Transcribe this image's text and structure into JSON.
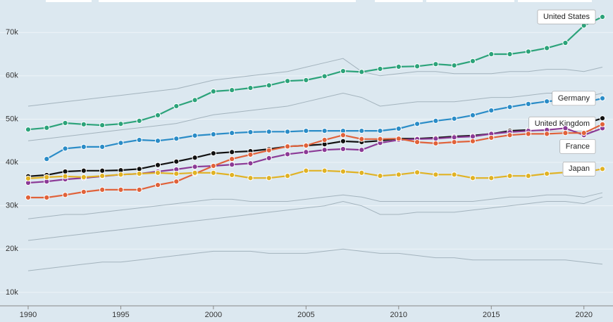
{
  "chart_data": {
    "type": "line",
    "x": [
      1990,
      1991,
      1992,
      1993,
      1994,
      1995,
      1996,
      1997,
      1998,
      1999,
      2000,
      2001,
      2002,
      2003,
      2004,
      2005,
      2006,
      2007,
      2008,
      2009,
      2010,
      2011,
      2012,
      2013,
      2014,
      2015,
      2016,
      2017,
      2018,
      2019,
      2020,
      2021
    ],
    "xlim": [
      1988.48,
      2021.57
    ],
    "xticks": [
      1990,
      1995,
      2000,
      2005,
      2010,
      2015,
      2020
    ],
    "ylim": [
      6900,
      77500
    ],
    "yticks": [
      {
        "value": 10000,
        "label": "10k"
      },
      {
        "value": 20000,
        "label": "20k"
      },
      {
        "value": 30000,
        "label": "30k"
      },
      {
        "value": 40000,
        "label": "40k"
      },
      {
        "value": 50000,
        "label": "50k"
      },
      {
        "value": 60000,
        "label": "60k"
      },
      {
        "value": 70000,
        "label": "70k"
      }
    ],
    "grid": true,
    "series": [
      {
        "name": "United States",
        "color": "#2ca37a",
        "values": [
          47600,
          48000,
          49100,
          48800,
          48600,
          48900,
          49600,
          50900,
          53000,
          54400,
          56400,
          56700,
          57200,
          57800,
          58800,
          59000,
          59900,
          61100,
          60900,
          61600,
          62100,
          62200,
          62700,
          62400,
          63400,
          65000,
          65000,
          65600,
          66400,
          67600,
          71600,
          73600
        ]
      },
      {
        "name": "Germany",
        "color": "#2a8cc7",
        "values": [
          null,
          40800,
          43200,
          43600,
          43600,
          44500,
          45200,
          45000,
          45500,
          46200,
          46500,
          46800,
          47000,
          47100,
          47100,
          47300,
          47300,
          47300,
          47300,
          47300,
          47800,
          48900,
          49600,
          50100,
          50900,
          52000,
          52800,
          53500,
          54100,
          54400,
          53800,
          54800
        ]
      },
      {
        "name": "United Kingdom",
        "color": "#111111",
        "values": [
          36800,
          37100,
          37900,
          38100,
          38100,
          38200,
          38500,
          39400,
          40200,
          41100,
          42100,
          42400,
          42600,
          43100,
          43700,
          43900,
          44200,
          44900,
          44700,
          45000,
          45500,
          45500,
          45700,
          46000,
          46200,
          46600,
          47300,
          47500,
          47800,
          48300,
          48900,
          50200
        ]
      },
      {
        "name": "France",
        "color": "#8b3a96",
        "values": [
          35300,
          35600,
          36100,
          36400,
          36800,
          37200,
          37400,
          37900,
          38400,
          39000,
          39200,
          39500,
          39800,
          41000,
          41900,
          42400,
          42900,
          43100,
          42900,
          44500,
          45200,
          45400,
          45500,
          45800,
          46000,
          46600,
          47000,
          47300,
          47500,
          47900,
          46300,
          47900
        ]
      },
      {
        "color": "#e0623a",
        "values": [
          31900,
          31900,
          32500,
          33200,
          33700,
          33700,
          33700,
          34800,
          35600,
          37400,
          39200,
          40800,
          41800,
          42800,
          43700,
          43900,
          45200,
          46300,
          45400,
          45400,
          45500,
          44700,
          44400,
          44700,
          44900,
          45700,
          46300,
          46600,
          46600,
          46800,
          46800,
          48800
        ]
      },
      {
        "name": "Japan",
        "color": "#e0b224",
        "values": [
          36300,
          36600,
          36800,
          36600,
          36900,
          37200,
          37400,
          37600,
          37400,
          37600,
          37600,
          37100,
          36400,
          36400,
          36900,
          38100,
          38100,
          37900,
          37600,
          36900,
          37200,
          37700,
          37200,
          37200,
          36400,
          36400,
          36900,
          36900,
          37400,
          37700,
          37700,
          38500
        ]
      },
      {
        "color": "#a3b3bd",
        "values": [
          53000,
          53500,
          54000,
          54500,
          55000,
          55500,
          56000,
          56500,
          57000,
          58000,
          59000,
          59500,
          60000,
          60500,
          61000,
          62000,
          63000,
          64000,
          61000,
          60000,
          60500,
          61000,
          61000,
          60500,
          60500,
          60500,
          61000,
          61000,
          61500,
          61500,
          61000,
          62000
        ]
      },
      {
        "color": "#a3b3bd",
        "values": [
          45000,
          45500,
          46000,
          46500,
          47000,
          47500,
          48000,
          48500,
          49000,
          50000,
          51000,
          51500,
          52000,
          52500,
          53000,
          54000,
          55000,
          56000,
          55000,
          53000,
          53500,
          54000,
          54000,
          54000,
          54500,
          55000,
          55000,
          55500,
          56000,
          56000,
          55000,
          56000
        ]
      },
      {
        "color": "#a3b3bd",
        "values": [
          27000,
          27500,
          28000,
          28000,
          28500,
          29000,
          29500,
          30000,
          30500,
          31000,
          31500,
          31500,
          31000,
          31000,
          31000,
          31500,
          32000,
          32500,
          32000,
          31000,
          31000,
          31000,
          31000,
          31000,
          31000,
          31500,
          32000,
          32000,
          32500,
          32500,
          32000,
          33000
        ]
      },
      {
        "color": "#a3b3bd",
        "values": [
          22000,
          22500,
          23000,
          23500,
          24000,
          24500,
          25000,
          25500,
          26000,
          26500,
          27000,
          27500,
          28000,
          28500,
          29000,
          29500,
          30000,
          31000,
          30000,
          28000,
          28000,
          28500,
          28500,
          28500,
          29000,
          29500,
          30000,
          30500,
          31000,
          31000,
          30500,
          32000
        ]
      },
      {
        "color": "#a3b3bd",
        "values": [
          15000,
          15500,
          16000,
          16500,
          17000,
          17000,
          17500,
          18000,
          18500,
          19000,
          19500,
          19500,
          19500,
          19000,
          19000,
          19000,
          19500,
          20000,
          19500,
          19000,
          19000,
          18500,
          18000,
          18000,
          17500,
          17500,
          17500,
          17500,
          17500,
          17500,
          17000,
          16500
        ]
      }
    ]
  }
}
